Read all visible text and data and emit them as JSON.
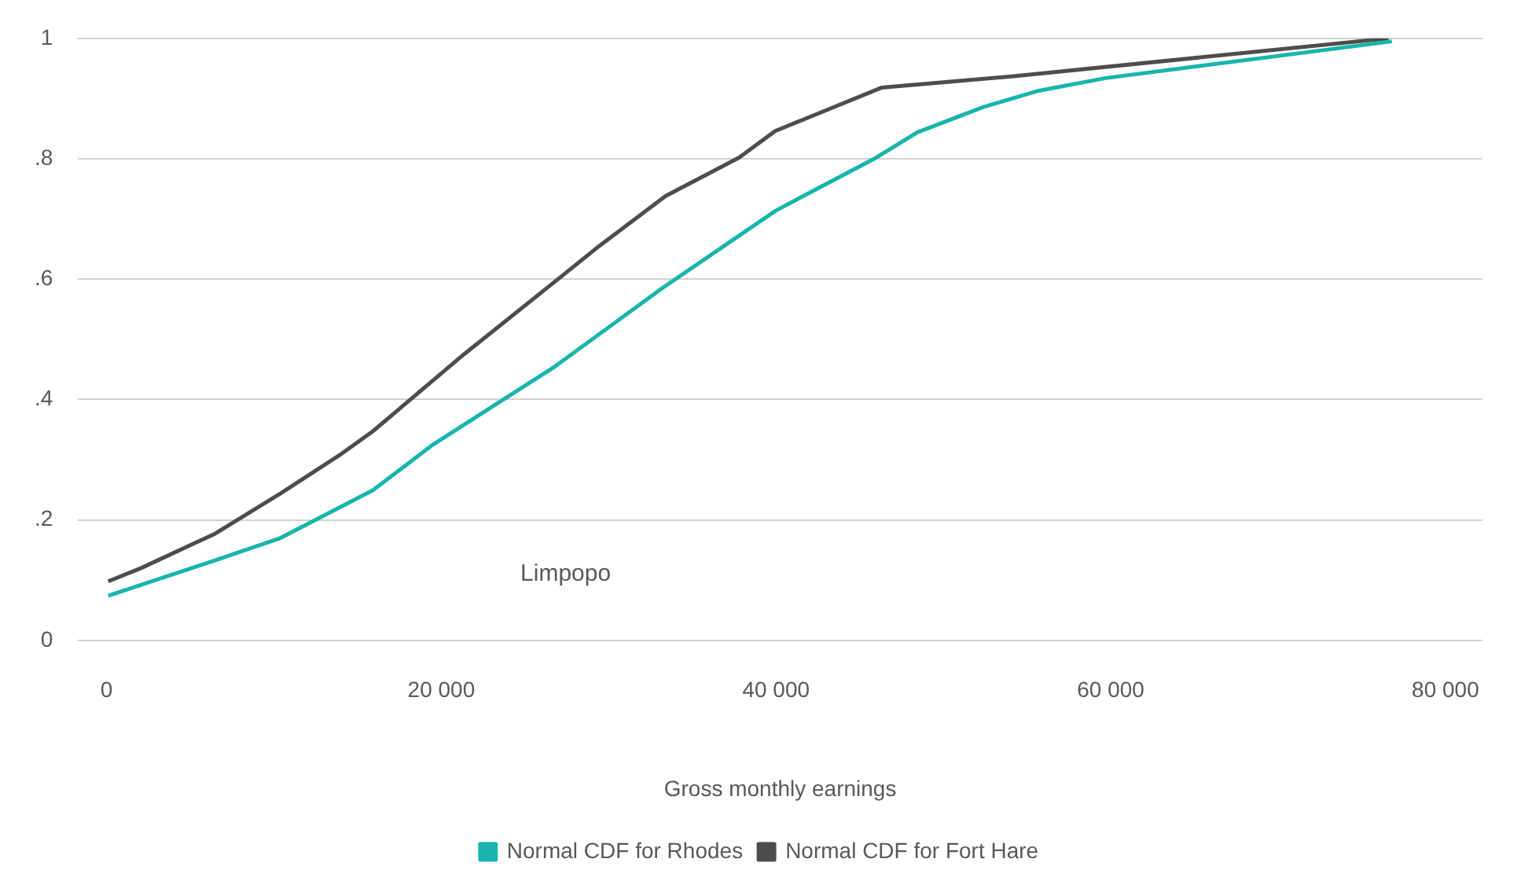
{
  "chart_data": {
    "type": "line",
    "xlabel": "Gross monthly earnings",
    "annotations": [
      "Limpopo"
    ],
    "xlim": [
      -1700,
      82200
    ],
    "xticks": [
      0,
      {
        "value": 20000,
        "label": "20 000"
      },
      {
        "value": 40000,
        "label": "40 000"
      },
      {
        "value": 60000,
        "label": "60 000"
      },
      {
        "value": 80000,
        "label": "80 000"
      }
    ],
    "ylim": [
      0,
      1
    ],
    "yticks": [
      0,
      {
        "value": 0.2,
        "label": ".2"
      },
      {
        "value": 0.4,
        "label": ".4"
      },
      {
        "value": 0.6,
        "label": ".6"
      },
      {
        "value": 0.8,
        "label": ".8"
      },
      1
    ],
    "grid": "y",
    "legend": "bottom",
    "marker": "none",
    "line_style": "solid",
    "series": [
      {
        "name": "Normal CDF for Rhodes",
        "color": "#17b5ad",
        "x": [
          100,
          5750,
          10400,
          15900,
          19500,
          26800,
          33200,
          40000,
          46000,
          48450,
          52400,
          55700,
          59700,
          76800
        ],
        "values": [
          0.074,
          0.126,
          0.17,
          0.249,
          0.325,
          0.455,
          0.585,
          0.714,
          0.802,
          0.844,
          0.886,
          0.913,
          0.934,
          0.995
        ]
      },
      {
        "name": "Normal CDF for Fort Hare",
        "color": "#4d4d4d",
        "x": [
          100,
          2070,
          6480,
          10400,
          14050,
          15900,
          21350,
          27200,
          29300,
          33400,
          37800,
          39950,
          46300,
          54200,
          76600
        ],
        "values": [
          0.098,
          0.12,
          0.177,
          0.244,
          0.31,
          0.347,
          0.475,
          0.605,
          0.652,
          0.738,
          0.802,
          0.846,
          0.918,
          0.937,
          1.0
        ]
      }
    ]
  }
}
